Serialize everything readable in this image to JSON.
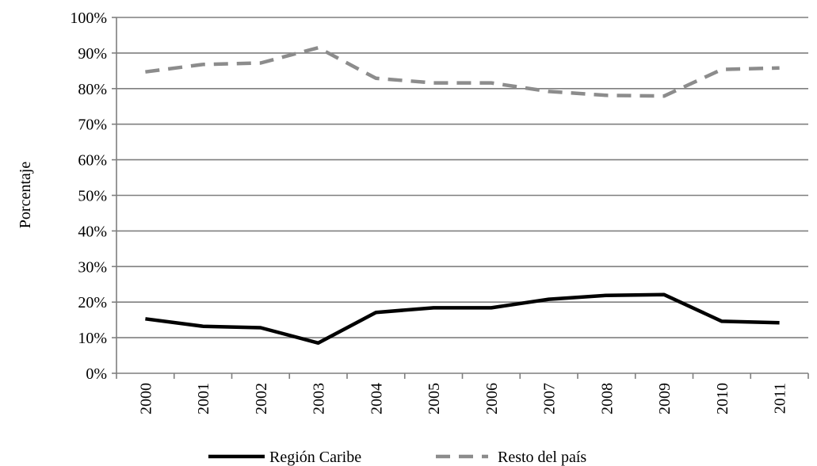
{
  "chart_data": {
    "type": "line",
    "title": "",
    "xlabel": "",
    "ylabel": "Porcentaje",
    "ylim": [
      0,
      100
    ],
    "yticks": [
      "0%",
      "10%",
      "20%",
      "30%",
      "40%",
      "50%",
      "60%",
      "70%",
      "80%",
      "90%",
      "100%"
    ],
    "grid": true,
    "legend_position": "bottom",
    "categories": [
      "2000",
      "2001",
      "2002",
      "2003",
      "2004",
      "2005",
      "2006",
      "2007",
      "2008",
      "2009",
      "2010",
      "2011"
    ],
    "series": [
      {
        "name": "Región Caribe",
        "color": "#000000",
        "style": "solid",
        "values": [
          15.3,
          13.2,
          12.8,
          8.5,
          17.1,
          18.4,
          18.4,
          20.8,
          21.9,
          22.1,
          14.6,
          14.2
        ]
      },
      {
        "name": "Resto del país",
        "color": "#8c8c8c",
        "style": "dashed",
        "values": [
          84.7,
          86.8,
          87.2,
          91.5,
          82.9,
          81.6,
          81.6,
          79.2,
          78.1,
          77.9,
          85.4,
          85.8
        ]
      }
    ]
  }
}
